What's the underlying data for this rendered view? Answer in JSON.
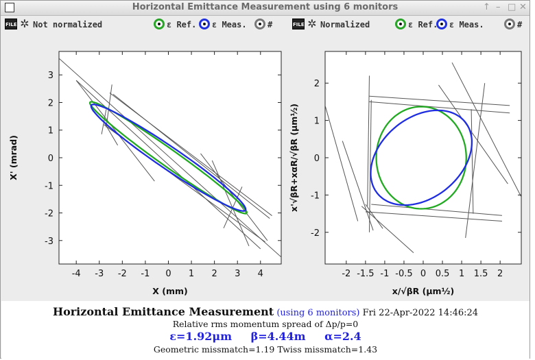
{
  "window": {
    "title": "Horizontal Emittance Measurement using 6 monitors",
    "controls": [
      "↑",
      "–",
      "□",
      "✕"
    ]
  },
  "left_toolbar": {
    "file_icon": "FILE",
    "mode_label": "Not normalized",
    "ref_label": "ε Ref.",
    "meas_label": "ε Meas.",
    "hash_label": "#"
  },
  "right_toolbar": {
    "file_icon": "FILE",
    "mode_label": "Normalized",
    "ref_label": "ε Ref.",
    "meas_label": "ε Meas.",
    "hash_label": "#"
  },
  "colors": {
    "ref": "#22aa22",
    "meas": "#1f2de0",
    "lines": "#555555"
  },
  "chart_data": [
    {
      "type": "scatter",
      "title": "",
      "xlabel": "X (mm)",
      "ylabel": "X' (mrad)",
      "xlim": [
        -4.75,
        4.9
      ],
      "ylim": [
        -3.85,
        3.85
      ],
      "xticks": [
        -4,
        -3,
        -2,
        -1,
        0,
        1,
        2,
        3,
        4
      ],
      "yticks": [
        -3,
        -2,
        -1,
        0,
        1,
        2,
        3
      ],
      "series": [
        {
          "name": "ε Ref.",
          "kind": "ellipse",
          "cx": 0,
          "cy": 0,
          "a": 3.95,
          "b": 0.33,
          "angle_deg": -30.5
        },
        {
          "name": "ε Meas.",
          "kind": "ellipse",
          "cx": 0,
          "cy": 0,
          "a": 3.85,
          "b": 0.42,
          "angle_deg": -29.5
        }
      ],
      "lines": [
        [
          [
            -4.75,
            3.6
          ],
          [
            4.9,
            -3.6
          ]
        ],
        [
          [
            -4.0,
            2.8
          ],
          [
            4.0,
            -3.3
          ]
        ],
        [
          [
            -4.0,
            2.8
          ],
          [
            -0.6,
            -0.85
          ]
        ],
        [
          [
            -2.8,
            1.3
          ],
          [
            -2.2,
            0.45
          ]
        ],
        [
          [
            -2.7,
            1.75
          ],
          [
            -2.9,
            0.85
          ]
        ],
        [
          [
            -2.7,
            1.1
          ],
          [
            -2.45,
            2.65
          ]
        ],
        [
          [
            -2.55,
            2.35
          ],
          [
            4.5,
            -2.1
          ]
        ],
        [
          [
            -2.4,
            2.3
          ],
          [
            4.4,
            -2.2
          ]
        ],
        [
          [
            -2.8,
            1.2
          ],
          [
            4.2,
            -3.05
          ]
        ],
        [
          [
            1.4,
            0.15
          ],
          [
            4.3,
            -3.0
          ]
        ],
        [
          [
            1.9,
            -0.1
          ],
          [
            3.5,
            -3.2
          ]
        ],
        [
          [
            3.2,
            -1.05
          ],
          [
            2.4,
            -2.55
          ]
        ]
      ]
    },
    {
      "type": "scatter",
      "title": "",
      "xlabel": "x/√βR (μm½)",
      "ylabel": "x'√βR+xαR/√βR (μm½)",
      "xlim": [
        -2.55,
        2.55
      ],
      "ylim": [
        -2.85,
        2.85
      ],
      "xticks": [
        -2,
        -1.5,
        -1,
        -0.5,
        0,
        0.5,
        1,
        1.5,
        2
      ],
      "yticks": [
        -2,
        -1,
        0,
        1,
        2
      ],
      "series": [
        {
          "name": "ε Ref.",
          "kind": "ellipse",
          "cx": -0.05,
          "cy": 0,
          "a": 1.17,
          "b": 1.37,
          "angle_deg": 0
        },
        {
          "name": "ε Meas.",
          "kind": "ellipse",
          "cx": -0.05,
          "cy": 0,
          "a": 1.49,
          "b": 1.06,
          "angle_deg": 42
        }
      ],
      "lines": [
        [
          [
            -2.55,
            1.4
          ],
          [
            -1.7,
            -1.7
          ]
        ],
        [
          [
            -2.1,
            0.45
          ],
          [
            -1.3,
            -1.95
          ]
        ],
        [
          [
            -1.6,
            -1.3
          ],
          [
            -0.25,
            -2.55
          ]
        ],
        [
          [
            -1.45,
            -1.3
          ],
          [
            -1.4,
            2.2
          ]
        ],
        [
          [
            -1.4,
            -2.0
          ],
          [
            -1.35,
            1.55
          ]
        ],
        [
          [
            -1.5,
            -1.25
          ],
          [
            -1.05,
            -1.9
          ]
        ],
        [
          [
            -1.4,
            1.65
          ],
          [
            2.25,
            1.4
          ]
        ],
        [
          [
            -1.4,
            1.5
          ],
          [
            2.25,
            1.2
          ]
        ],
        [
          [
            -1.35,
            -1.25
          ],
          [
            2.05,
            -1.55
          ]
        ],
        [
          [
            -1.5,
            -1.45
          ],
          [
            2.05,
            -1.7
          ]
        ],
        [
          [
            0.4,
            1.95
          ],
          [
            2.2,
            -0.7
          ]
        ],
        [
          [
            0.75,
            2.55
          ],
          [
            2.55,
            -1.05
          ]
        ],
        [
          [
            1.1,
            -2.15
          ],
          [
            1.6,
            2.0
          ]
        ],
        [
          [
            1.3,
            -1.5
          ],
          [
            1.25,
            1.3
          ]
        ]
      ]
    }
  ],
  "info": {
    "heading": "Horizontal Emittance Measurement",
    "monitors": "(using 6 monitors)",
    "datetime": "Fri 22-Apr-2022 14:46:24",
    "spread": "Relative rms momentum spread of Δp/p=0",
    "epsilon": "ε=1.92μm",
    "beta": "β=4.44m",
    "alpha": "α=2.4",
    "mismatch": "Geometric missmatch=1.19 Twiss missmatch=1.43"
  }
}
